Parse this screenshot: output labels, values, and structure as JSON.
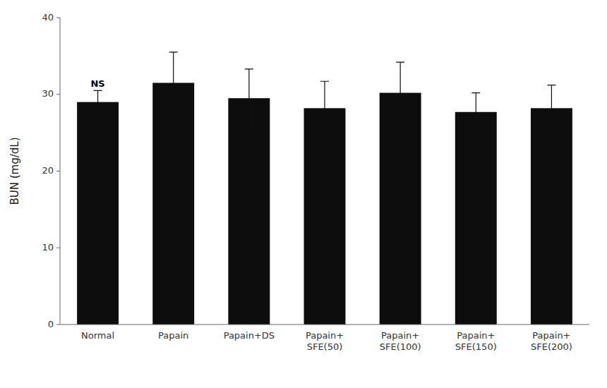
{
  "chart_data": {
    "type": "bar",
    "categories": [
      "Normal",
      "Papain",
      "Papain+DS",
      "Papain+\nSFE(50)",
      "Papain+\nSFE(100)",
      "Papain+\nSFE(150)",
      "Papain+\nSFE(200)"
    ],
    "values": [
      29.0,
      31.5,
      29.5,
      28.2,
      30.2,
      27.7,
      28.2
    ],
    "errors": [
      1.5,
      4.0,
      3.8,
      3.5,
      4.0,
      2.5,
      3.0
    ],
    "color": "#0d0d0d",
    "ylabel": "BUN (mg/dL)",
    "ylim": [
      0,
      40
    ],
    "yticks": [
      0,
      10,
      20,
      30,
      40
    ],
    "annotations": [
      {
        "text": "NS",
        "x": "Normal",
        "y": 30.6
      }
    ],
    "grid": false
  }
}
